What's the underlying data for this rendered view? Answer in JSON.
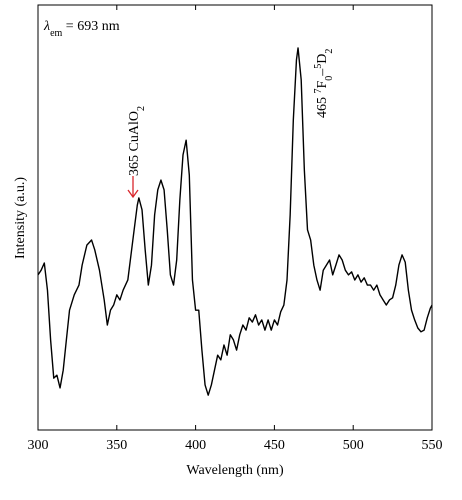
{
  "chart_data": {
    "type": "line",
    "x_label": "Wavelength (nm)",
    "y_label": "Intensity (a.u.)",
    "xlim": [
      300,
      550
    ],
    "xticks": [
      300,
      350,
      400,
      450,
      500,
      550
    ],
    "ylim": [
      0,
      100
    ],
    "color": "#000000",
    "arrow_color": "#d9262c",
    "annotations": [
      [
        {
          "text": "λ"
        },
        {
          "text": "em",
          "style": "sub"
        },
        {
          "text": " = 693 nm"
        }
      ],
      [
        {
          "text": "365 CuAlO"
        },
        {
          "text": "2",
          "style": "sub"
        }
      ],
      [
        {
          "text": "465 "
        },
        {
          "text": "7",
          "style": "sup"
        },
        {
          "text": "F"
        },
        {
          "text": "0",
          "style": "sub"
        },
        {
          "text": "–"
        },
        {
          "text": "5",
          "style": "sup"
        },
        {
          "text": "D"
        },
        {
          "text": "2",
          "style": "sub"
        }
      ]
    ],
    "x": [
      300,
      302,
      304,
      306,
      308,
      310,
      312,
      314,
      316,
      318,
      320,
      323,
      326,
      328,
      331,
      334,
      336,
      339,
      342,
      344,
      346,
      348,
      350,
      352,
      354,
      357,
      359,
      361,
      363,
      364,
      366,
      368,
      370,
      372,
      374,
      376,
      378,
      380,
      382,
      384,
      386,
      388,
      390,
      392,
      394,
      396,
      398,
      400,
      402,
      404,
      406,
      408,
      410,
      412,
      414,
      416,
      418,
      420,
      422,
      424,
      426,
      428,
      430,
      432,
      434,
      436,
      438,
      440,
      442,
      444,
      446,
      448,
      450,
      452,
      454,
      456,
      458,
      460,
      462,
      464,
      465,
      467,
      469,
      471,
      473,
      475,
      477,
      479,
      481,
      483,
      485,
      487,
      489,
      491,
      493,
      495,
      497,
      499,
      501,
      503,
      505,
      507,
      509,
      511,
      513,
      515,
      517,
      519,
      521,
      523,
      525,
      527,
      529,
      531,
      533,
      535,
      537,
      539,
      541,
      543,
      545,
      547,
      549,
      550
    ],
    "values": [
      36.5,
      37.6,
      39.3,
      32.9,
      21.2,
      12.2,
      12.9,
      9.9,
      14.1,
      21.2,
      28.2,
      31.8,
      34.1,
      38.8,
      43.5,
      44.7,
      42.4,
      37.6,
      30.6,
      24.7,
      28.2,
      29.4,
      31.8,
      30.6,
      32.9,
      35.3,
      41.2,
      47.1,
      52.9,
      54.6,
      51.8,
      42.4,
      34.1,
      38.8,
      50.6,
      56.5,
      58.8,
      56.5,
      47.1,
      36.5,
      34.1,
      40.0,
      54.1,
      64.7,
      68.2,
      60.0,
      35.3,
      28.2,
      28.2,
      18.8,
      10.6,
      8.2,
      10.6,
      14.1,
      17.6,
      16.5,
      20.0,
      17.6,
      22.4,
      21.2,
      18.8,
      22.4,
      24.7,
      23.5,
      26.4,
      25.4,
      27.1,
      24.7,
      25.9,
      23.5,
      25.9,
      23.5,
      25.9,
      24.7,
      27.8,
      29.4,
      35.3,
      50.6,
      72.9,
      87.1,
      89.9,
      82.4,
      61.2,
      47.1,
      44.7,
      38.8,
      35.3,
      32.9,
      37.6,
      38.8,
      40.0,
      36.5,
      38.8,
      41.2,
      40.0,
      37.6,
      36.5,
      37.2,
      35.3,
      36.5,
      34.8,
      35.8,
      34.1,
      34.1,
      32.9,
      34.1,
      31.8,
      30.6,
      29.4,
      30.6,
      31.1,
      34.1,
      38.8,
      41.2,
      39.5,
      32.9,
      28.2,
      25.9,
      24.0,
      23.1,
      23.5,
      26.4,
      28.7,
      29.4
    ]
  }
}
